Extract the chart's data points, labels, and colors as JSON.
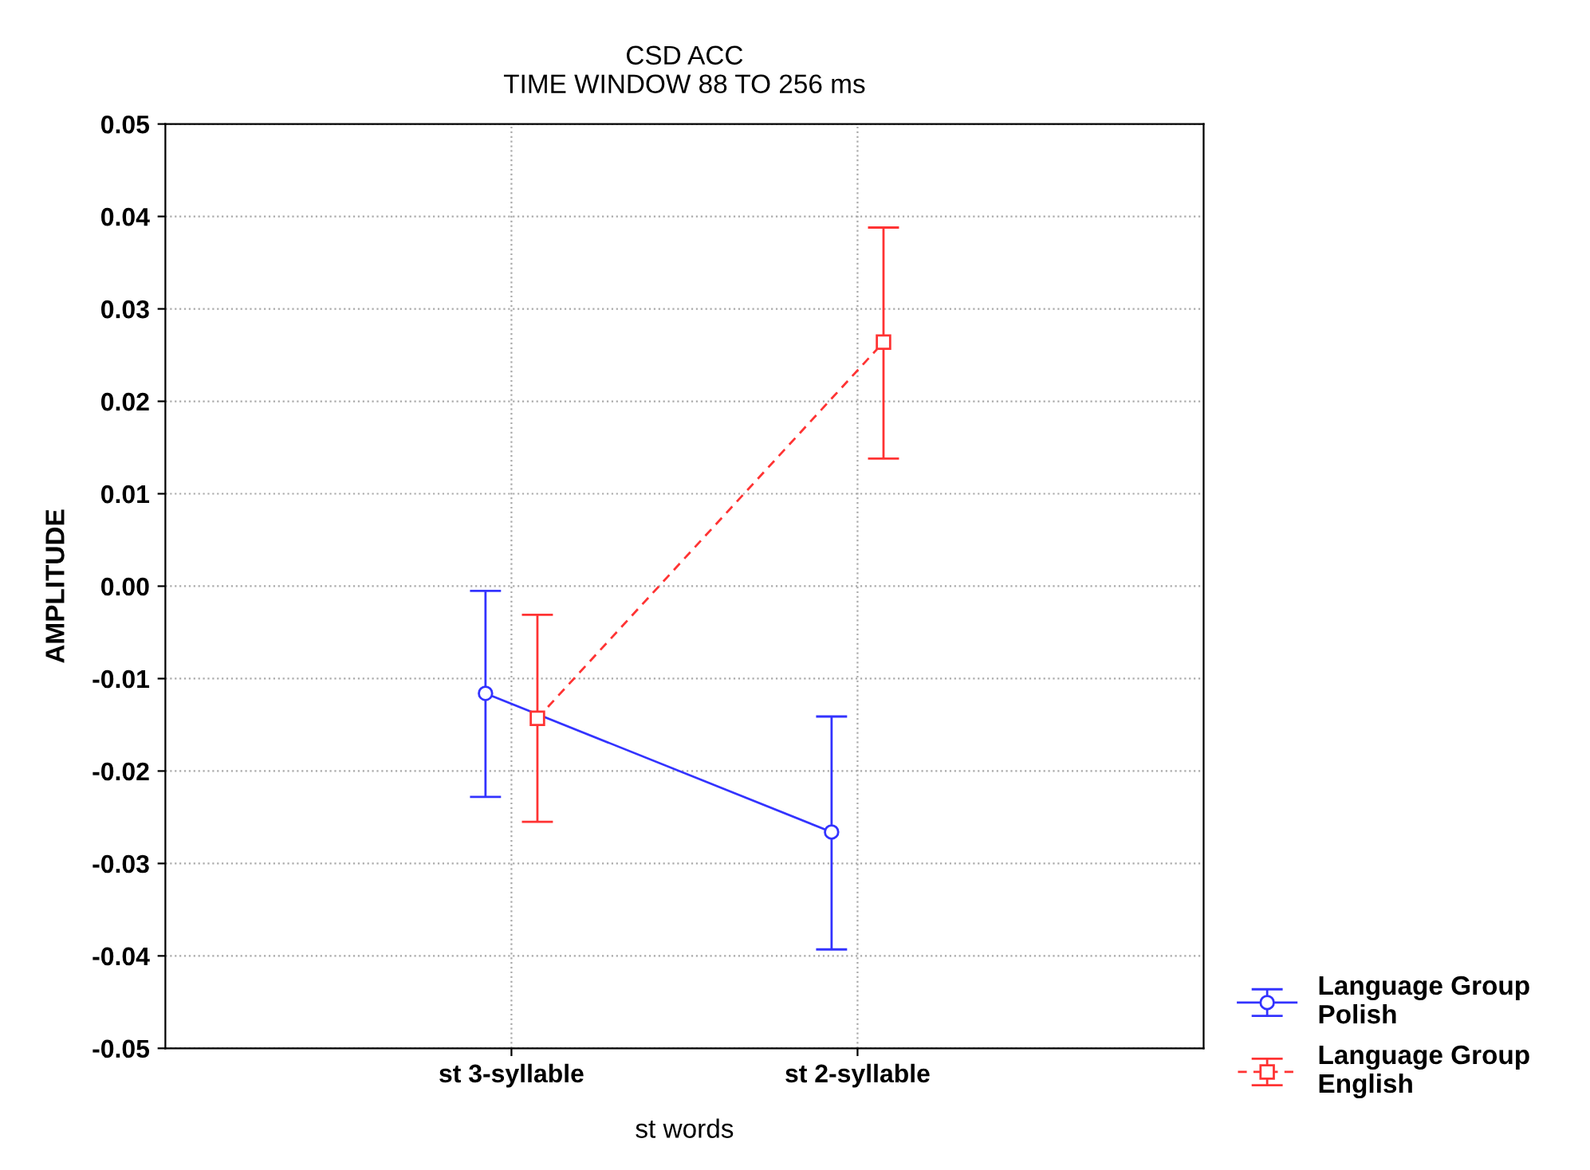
{
  "chart_data": {
    "type": "line",
    "title": "CSD ACC\nTIME WINDOW 88 TO 256 ms",
    "xlabel": "st words",
    "ylabel": "AMPLITUDE",
    "categories": [
      "st 3-syllable",
      "st 2-syllable"
    ],
    "series": [
      {
        "name": "Language Group\nPolish",
        "color": "#3333ff",
        "values": [
          -0.0116,
          -0.0266
        ],
        "errors": [
          [
            -0.0228,
            -0.0005
          ],
          [
            -0.0393,
            -0.0141
          ]
        ],
        "marker": "circle",
        "line_style": "solid"
      },
      {
        "name": "Language Group\nEnglish",
        "color": "#ff3333",
        "values": [
          -0.0143,
          0.0264
        ],
        "errors": [
          [
            -0.0255,
            -0.0031
          ],
          [
            0.0138,
            0.0388
          ]
        ],
        "marker": "square",
        "line_style": "dashed"
      }
    ],
    "ylim": [
      -0.05,
      0.05
    ],
    "yticks": [
      {
        "value": -0.05,
        "label": "-0.05"
      },
      {
        "value": -0.04,
        "label": "-0.04"
      },
      {
        "value": -0.03,
        "label": "-0.03"
      },
      {
        "value": -0.02,
        "label": "-0.02"
      },
      {
        "value": -0.01,
        "label": "-0.01"
      },
      {
        "value": 0.0,
        "label": "0.00"
      },
      {
        "value": 0.01,
        "label": "0.01"
      },
      {
        "value": 0.02,
        "label": "0.02"
      },
      {
        "value": 0.03,
        "label": "0.03"
      },
      {
        "value": 0.04,
        "label": "0.04"
      },
      {
        "value": 0.05,
        "label": "0.05"
      }
    ],
    "grid": true,
    "legend": "bottom right"
  }
}
